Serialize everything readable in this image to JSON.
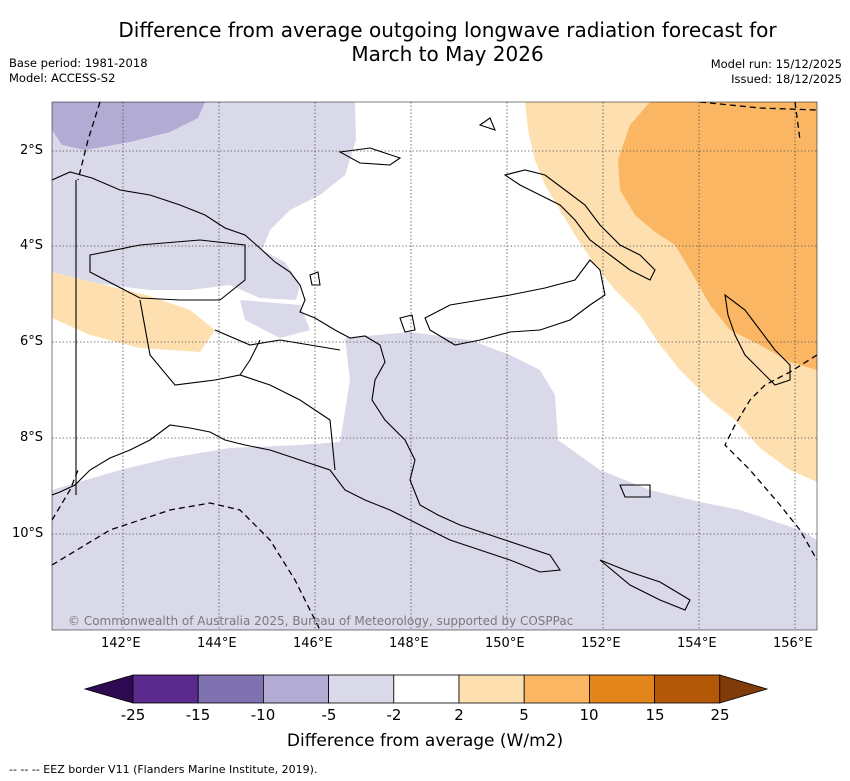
{
  "title_line1": "Difference from average outgoing longwave radiation forecast for",
  "title_line2": "March to May 2026",
  "meta_left": {
    "base_period": "Base period: 1981-2018",
    "model": "Model: ACCESS-S2"
  },
  "meta_right": {
    "model_run": "Model run: 15/12/2025",
    "issued": "Issued: 18/12/2025"
  },
  "lat_labels": [
    "2°S",
    "4°S",
    "6°S",
    "8°S",
    "10°S"
  ],
  "lon_labels": [
    "142°E",
    "144°E",
    "146°E",
    "148°E",
    "150°E",
    "152°E",
    "154°E",
    "156°E"
  ],
  "copyright": "© Commonwealth of Australia 2025, Bureau of Meteorology, supported by COSPPac",
  "colorbar": {
    "title": "Difference from average (W/m2)",
    "ticks": [
      "-25",
      "-15",
      "-10",
      "-5",
      "-2",
      "2",
      "5",
      "10",
      "15",
      "25"
    ],
    "colors": [
      "#2d0a52",
      "#5a2b8c",
      "#8071b0",
      "#b2abd4",
      "#d9d9ea",
      "#ffffff",
      "#fddfb0",
      "#fbb664",
      "#e2851a",
      "#b35807",
      "#7f3b08"
    ]
  },
  "footer": "-- -- -- EEZ border V11 (Flanders Marine Institute, 2019)."
}
